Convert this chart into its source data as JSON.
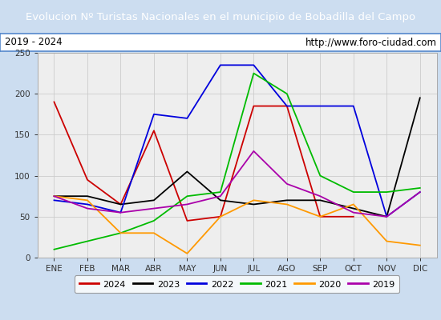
{
  "title": "Evolucion Nº Turistas Nacionales en el municipio de Bobadilla del Campo",
  "subtitle_left": "2019 - 2024",
  "subtitle_right": "http://www.foro-ciudad.com",
  "months": [
    "ENE",
    "FEB",
    "MAR",
    "ABR",
    "MAY",
    "JUN",
    "JUL",
    "AGO",
    "SEP",
    "OCT",
    "NOV",
    "DIC"
  ],
  "ylim": [
    0,
    250
  ],
  "yticks": [
    0,
    50,
    100,
    150,
    200,
    250
  ],
  "series": {
    "2024": {
      "color": "#cc0000",
      "values": [
        190,
        95,
        65,
        155,
        45,
        50,
        185,
        185,
        50,
        50,
        null,
        null
      ]
    },
    "2023": {
      "color": "#000000",
      "values": [
        75,
        75,
        65,
        70,
        105,
        70,
        65,
        70,
        70,
        60,
        50,
        195
      ]
    },
    "2022": {
      "color": "#0000dd",
      "values": [
        70,
        65,
        55,
        175,
        170,
        235,
        235,
        185,
        185,
        185,
        50,
        80
      ]
    },
    "2021": {
      "color": "#00bb00",
      "values": [
        10,
        20,
        30,
        45,
        75,
        80,
        225,
        200,
        100,
        80,
        80,
        85
      ]
    },
    "2020": {
      "color": "#ff9900",
      "values": [
        75,
        70,
        30,
        30,
        5,
        50,
        70,
        65,
        50,
        65,
        20,
        15
      ]
    },
    "2019": {
      "color": "#aa00aa",
      "values": [
        75,
        60,
        55,
        60,
        65,
        75,
        130,
        90,
        75,
        55,
        50,
        80
      ]
    }
  },
  "title_bg_color": "#5588cc",
  "title_text_color": "#ffffff",
  "subtitle_bg_color": "#ffffff",
  "plot_bg_color": "#eeeeee",
  "outer_bg_color": "#ccddf0",
  "border_color": "#5588cc",
  "grid_color": "#cccccc",
  "legend_order": [
    "2024",
    "2023",
    "2022",
    "2021",
    "2020",
    "2019"
  ]
}
